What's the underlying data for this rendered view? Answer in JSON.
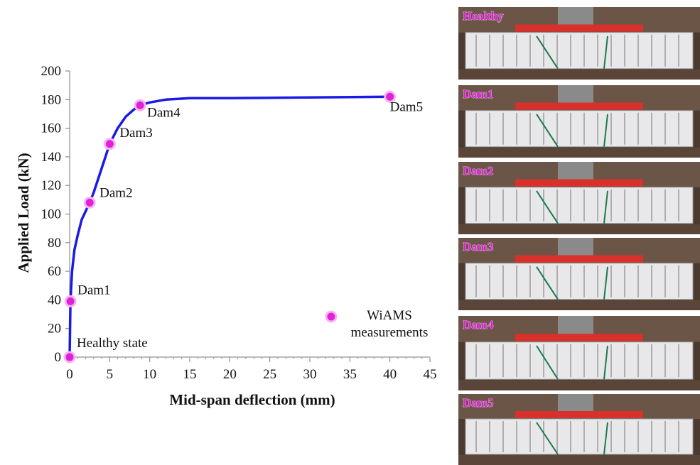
{
  "chart_data": {
    "type": "line",
    "x_label": "Mid-span deflection (mm)",
    "y_label": "Applied Load (kN)",
    "xlim": [
      0,
      45
    ],
    "xticks": [
      0,
      5,
      10,
      15,
      20,
      25,
      30,
      35,
      40,
      45
    ],
    "ylim": [
      0,
      200
    ],
    "yticks": [
      0,
      20,
      40,
      60,
      80,
      100,
      120,
      140,
      160,
      180,
      200
    ],
    "series": [
      {
        "color": "#1a1ae6",
        "x": [
          0,
          0.1,
          0.3,
          0.6,
          1,
          1.5,
          2,
          2.5,
          3,
          4,
          5,
          6,
          7,
          8,
          8.8,
          10,
          12,
          15,
          20,
          30,
          40
        ],
        "values": [
          0,
          39,
          60,
          75,
          85,
          96,
          102,
          108,
          115,
          132,
          149,
          160,
          168,
          173,
          176,
          178,
          180,
          181,
          181,
          181.5,
          182
        ]
      },
      {
        "name": "WiAMS measurements",
        "color": "#e021d8",
        "marker": true,
        "x": [
          0,
          0.1,
          2.5,
          5,
          8.8,
          40
        ],
        "values": [
          0,
          39,
          108,
          149,
          176,
          182
        ],
        "point_labels": [
          "Healthy state",
          "Dam1",
          "Dam2",
          "Dam3",
          "Dam4",
          "Dam5"
        ]
      }
    ]
  },
  "photo_panels": {
    "labels": [
      "Healthy",
      "Dam1",
      "Dam2",
      "Dam3",
      "Dam4",
      "Dam5"
    ]
  }
}
